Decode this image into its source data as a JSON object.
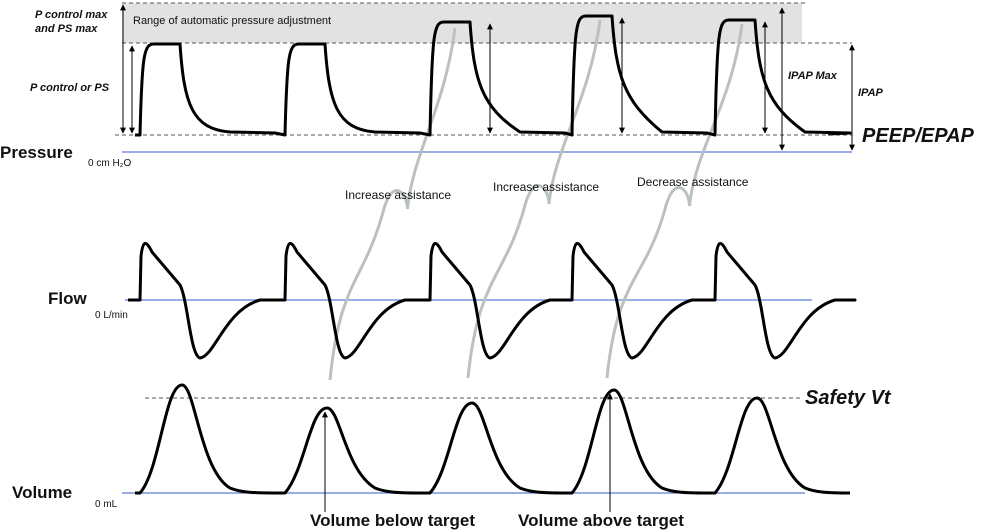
{
  "pressure_panel": {
    "label": "Pressure",
    "zero": "0 cm H₂O",
    "max_label": [
      "P control max",
      "and PS max"
    ],
    "range_label": "Range of automatic pressure adjustment",
    "level_label": "P control or PS",
    "ipap_max": "IPAP Max",
    "ipap": "IPAP",
    "baseline": "PEEP/EPAP"
  },
  "annotations": [
    "Increase assistance",
    "Increase assistance",
    "Decrease assistance"
  ],
  "flow_panel": {
    "label": "Flow",
    "zero": "0 L/min"
  },
  "volume_panel": {
    "label": "Volume",
    "zero": "0 mL",
    "threshold": "Safety Vt",
    "callouts": [
      "Volume below target",
      "Volume above target"
    ]
  }
}
